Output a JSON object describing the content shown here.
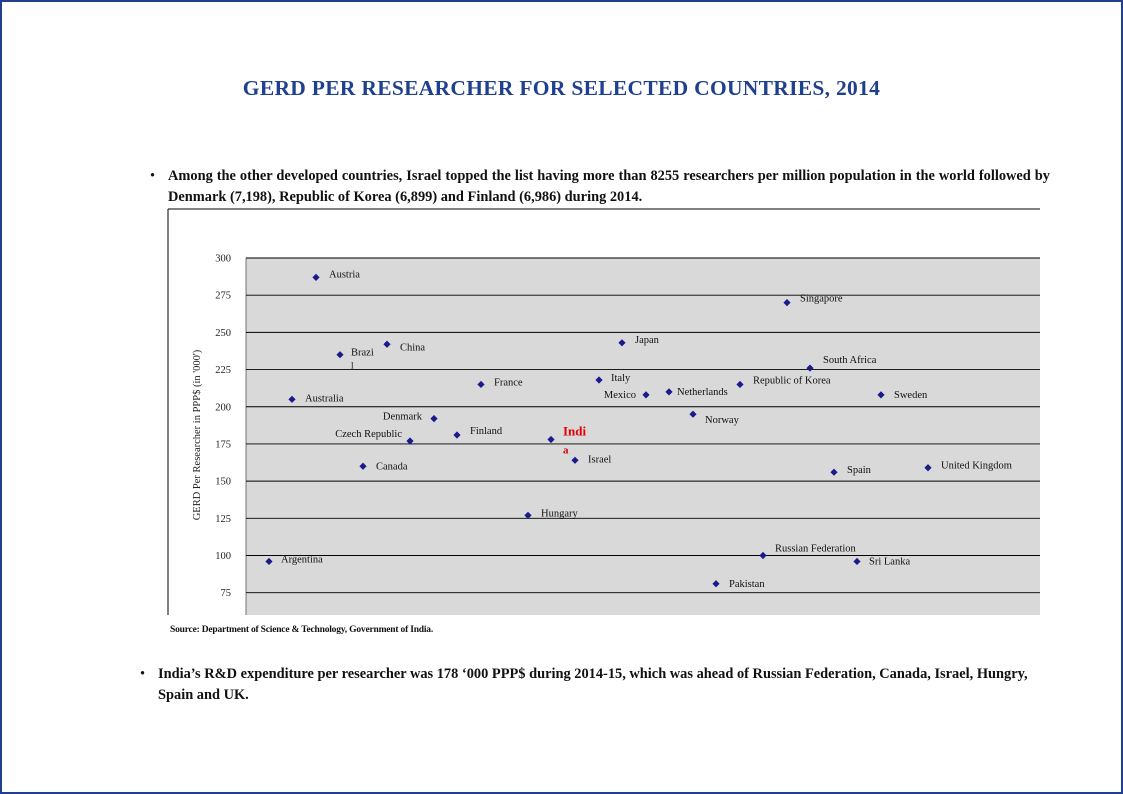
{
  "title": "GERD PER RESEARCHER FOR SELECTED COUNTRIES,  2014",
  "bullet1": "Among the other developed countries, Israel topped the list having more than 8255 researchers per million population  in the  world followed by Denmark (7,198), Republic of Korea (6,899) and Finland  (6,986) during  2014.",
  "bullet2": "India’s R&D expenditure per researcher was 178 ‘000 PPP$ during 2014-15, which was ahead of Russian Federation,  Canada, Israel, Hungry, Spain and UK.",
  "source": "Source: Department of Science & Technology, Government of India.",
  "colors": {
    "title": "#1f3f8f",
    "marker": "#1a1a8c",
    "highlight": "#e00000",
    "plot_background": "#d9d9d9",
    "frame": "#1f3f8f"
  },
  "chart_data": {
    "type": "scatter",
    "title": "",
    "xlabel": "",
    "ylabel": "GERD Per Researcher in PPP$ (in '000')",
    "ylim": [
      60,
      300
    ],
    "yticks": [
      75,
      100,
      125,
      150,
      175,
      200,
      225,
      250,
      275,
      300
    ],
    "grid": true,
    "points": [
      {
        "label": "Argentina",
        "x": 1,
        "y": 96
      },
      {
        "label": "Australia",
        "x": 2,
        "y": 205
      },
      {
        "label": "Austria",
        "x": 3,
        "y": 287
      },
      {
        "label": "Brazi\nl",
        "x": 4,
        "y": 235
      },
      {
        "label": "Canada",
        "x": 5,
        "y": 160
      },
      {
        "label": "China",
        "x": 6,
        "y": 242
      },
      {
        "label": "Czech Republic",
        "x": 7,
        "y": 177
      },
      {
        "label": "Denmark",
        "x": 8,
        "y": 192
      },
      {
        "label": "Finland",
        "x": 9,
        "y": 181
      },
      {
        "label": "France",
        "x": 10,
        "y": 215
      },
      {
        "label": "Hungary",
        "x": 11,
        "y": 127
      },
      {
        "label": "Indi\na",
        "x": 12,
        "y": 178,
        "highlight": true
      },
      {
        "label": "Israel",
        "x": 13,
        "y": 164
      },
      {
        "label": "Italy",
        "x": 14,
        "y": 218
      },
      {
        "label": "Japan",
        "x": 15,
        "y": 243
      },
      {
        "label": "Mexico",
        "x": 16,
        "y": 208
      },
      {
        "label": "Netherlands",
        "x": 17,
        "y": 210
      },
      {
        "label": "Norway",
        "x": 18,
        "y": 195
      },
      {
        "label": "Pakistan",
        "x": 19,
        "y": 81
      },
      {
        "label": "Republic  of Korea",
        "x": 20,
        "y": 215
      },
      {
        "label": "Russian  Federation",
        "x": 21,
        "y": 100
      },
      {
        "label": "Singapore",
        "x": 22,
        "y": 270
      },
      {
        "label": "South  Africa",
        "x": 23,
        "y": 226
      },
      {
        "label": "Spain",
        "x": 24,
        "y": 156
      },
      {
        "label": "Sri Lanka",
        "x": 25,
        "y": 96
      },
      {
        "label": "Sweden",
        "x": 26,
        "y": 208
      },
      {
        "label": "United Kingdom",
        "x": 27,
        "y": 159
      }
    ]
  }
}
